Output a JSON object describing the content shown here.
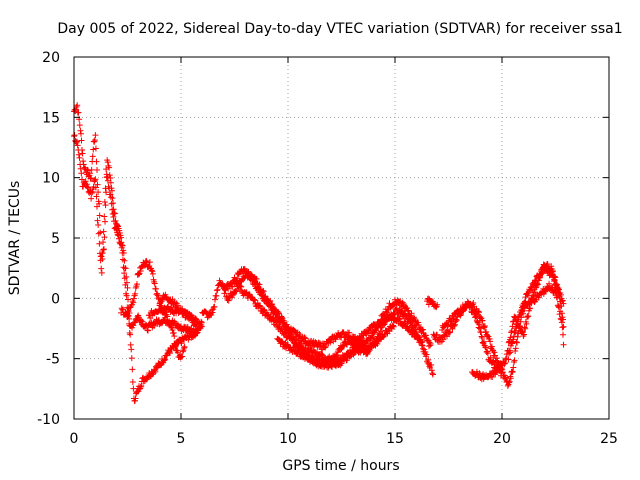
{
  "chart_data": {
    "type": "scatter",
    "title": "Day 005 of 2022, Sidereal Day-to-day VTEC variation (SDTVAR) for receiver ssa1",
    "xlabel": "GPS time / hours",
    "ylabel": "SDTVAR / TECUs",
    "xlim": [
      0,
      25
    ],
    "ylim": [
      -10,
      20
    ],
    "xticks": [
      0,
      5,
      10,
      15,
      20,
      25
    ],
    "yticks": [
      -10,
      -5,
      0,
      5,
      10,
      15,
      20
    ],
    "grid": true,
    "marker": "+",
    "series": [
      {
        "name": "SDTVAR",
        "color": "#ff0000",
        "traces": [
          [
            [
              0.0,
              15.5
            ],
            [
              0.15,
              16.0
            ],
            [
              0.3,
              14.0
            ],
            [
              0.45,
              11.0
            ],
            [
              0.6,
              10.5
            ],
            [
              0.8,
              10.0
            ],
            [
              0.9,
              12.5
            ],
            [
              1.0,
              13.5
            ],
            [
              1.1,
              9.5
            ],
            [
              1.2,
              7.0
            ],
            [
              1.25,
              3.5
            ],
            [
              1.4,
              4.0
            ],
            [
              1.55,
              11.5
            ],
            [
              1.7,
              10.0
            ],
            [
              1.85,
              7.5
            ],
            [
              2.0,
              6.0
            ],
            [
              2.2,
              5.0
            ],
            [
              2.4,
              1.0
            ],
            [
              2.55,
              -1.5
            ],
            [
              2.7,
              -5.0
            ],
            [
              2.8,
              -8.5
            ],
            [
              2.9,
              -8.0
            ],
            [
              3.2,
              -6.8
            ],
            [
              3.6,
              -6.2
            ],
            [
              4.0,
              -5.5
            ],
            [
              4.4,
              -4.5
            ],
            [
              4.8,
              -3.8
            ],
            [
              5.2,
              -3.3
            ],
            [
              5.6,
              -3.0
            ],
            [
              6.0,
              -2.0
            ]
          ],
          [
            [
              0.0,
              13.5
            ],
            [
              0.2,
              12.5
            ],
            [
              0.4,
              9.5
            ],
            [
              0.6,
              9.5
            ],
            [
              0.8,
              8.5
            ],
            [
              1.0,
              10.0
            ],
            [
              1.1,
              6.5
            ],
            [
              1.3,
              2.0
            ],
            [
              1.5,
              10.5
            ],
            [
              1.7,
              8.5
            ],
            [
              1.9,
              6.0
            ],
            [
              2.1,
              5.0
            ],
            [
              2.3,
              4.0
            ],
            [
              2.5,
              1.0
            ],
            [
              2.6,
              -2.5
            ],
            [
              2.8,
              -2.0
            ],
            [
              3.0,
              -1.5
            ],
            [
              3.4,
              -2.5
            ],
            [
              3.8,
              -2.0
            ],
            [
              4.2,
              -1.8
            ],
            [
              4.6,
              -2.0
            ],
            [
              5.0,
              -2.5
            ],
            [
              5.4,
              -2.5
            ],
            [
              5.8,
              -3.0
            ]
          ],
          [
            [
              2.2,
              -1.0
            ],
            [
              2.5,
              -1.5
            ],
            [
              2.8,
              0.0
            ],
            [
              3.0,
              2.0
            ],
            [
              3.3,
              3.0
            ],
            [
              3.6,
              2.7
            ],
            [
              3.8,
              1.0
            ],
            [
              4.0,
              -0.5
            ],
            [
              4.3,
              -1.5
            ],
            [
              4.6,
              -2.5
            ],
            [
              4.8,
              -4.5
            ],
            [
              5.0,
              -5.0
            ],
            [
              5.2,
              -4.0
            ]
          ],
          [
            [
              3.5,
              -1.5
            ],
            [
              3.8,
              -1.0
            ],
            [
              4.2,
              -0.8
            ],
            [
              4.6,
              -1.0
            ],
            [
              5.0,
              -1.2
            ],
            [
              5.4,
              -1.5
            ],
            [
              5.8,
              -2.0
            ],
            [
              6.0,
              -2.5
            ]
          ],
          [
            [
              4.0,
              -0.2
            ],
            [
              4.3,
              0.2
            ],
            [
              4.6,
              -0.3
            ],
            [
              5.0,
              -1.0
            ],
            [
              5.4,
              -1.5
            ],
            [
              5.8,
              -2.5
            ]
          ],
          [
            [
              6.0,
              -1.0
            ],
            [
              6.3,
              -1.5
            ],
            [
              6.5,
              -1.0
            ],
            [
              6.8,
              1.5
            ],
            [
              7.2,
              0.0
            ],
            [
              7.5,
              0.5
            ],
            [
              7.8,
              1.5
            ],
            [
              8.0,
              2.0
            ],
            [
              8.2,
              1.8
            ],
            [
              8.5,
              1.5
            ],
            [
              8.8,
              0.5
            ],
            [
              9.2,
              -0.5
            ],
            [
              9.6,
              -1.5
            ],
            [
              10.0,
              -2.5
            ],
            [
              10.4,
              -3.0
            ],
            [
              10.8,
              -3.5
            ],
            [
              11.2,
              -3.8
            ],
            [
              11.6,
              -4.0
            ],
            [
              12.0,
              -3.5
            ],
            [
              12.4,
              -3.0
            ],
            [
              12.8,
              -3.0
            ],
            [
              13.2,
              -3.5
            ],
            [
              13.6,
              -3.8
            ],
            [
              14.0,
              -3.0
            ],
            [
              14.4,
              -1.5
            ],
            [
              14.8,
              -0.5
            ],
            [
              15.0,
              -0.3
            ],
            [
              15.3,
              -0.5
            ],
            [
              15.6,
              -1.0
            ],
            [
              16.0,
              -2.0
            ],
            [
              16.3,
              -2.8
            ],
            [
              16.5,
              -3.5
            ],
            [
              16.7,
              -4.0
            ]
          ],
          [
            [
              7.0,
              0.8
            ],
            [
              7.4,
              1.2
            ],
            [
              7.8,
              2.2
            ],
            [
              8.1,
              2.2
            ],
            [
              8.5,
              1.0
            ],
            [
              8.9,
              0.0
            ],
            [
              9.3,
              -1.0
            ],
            [
              9.7,
              -2.0
            ],
            [
              10.1,
              -3.0
            ],
            [
              10.5,
              -4.0
            ],
            [
              10.9,
              -4.8
            ],
            [
              11.3,
              -5.2
            ],
            [
              11.7,
              -5.4
            ],
            [
              12.1,
              -5.0
            ],
            [
              12.5,
              -4.0
            ],
            [
              12.9,
              -3.5
            ],
            [
              13.3,
              -4.0
            ],
            [
              13.7,
              -4.5
            ],
            [
              14.1,
              -3.5
            ],
            [
              14.5,
              -2.0
            ],
            [
              14.9,
              -1.2
            ],
            [
              15.2,
              -1.0
            ],
            [
              15.5,
              -1.5
            ],
            [
              15.9,
              -2.5
            ],
            [
              16.2,
              -3.5
            ],
            [
              16.5,
              -5.0
            ],
            [
              16.8,
              -6.2
            ]
          ],
          [
            [
              7.5,
              1.5
            ],
            [
              7.9,
              0.5
            ],
            [
              8.3,
              0.0
            ],
            [
              8.7,
              -0.8
            ],
            [
              9.1,
              -1.5
            ],
            [
              9.5,
              -2.2
            ],
            [
              9.9,
              -3.0
            ],
            [
              10.3,
              -3.5
            ],
            [
              10.7,
              -4.2
            ],
            [
              11.1,
              -4.5
            ],
            [
              11.5,
              -4.8
            ],
            [
              11.9,
              -5.0
            ],
            [
              12.3,
              -5.5
            ],
            [
              12.7,
              -5.0
            ],
            [
              13.1,
              -4.0
            ],
            [
              13.5,
              -3.0
            ],
            [
              13.9,
              -2.5
            ],
            [
              14.3,
              -2.0
            ],
            [
              14.7,
              -1.5
            ],
            [
              15.1,
              -1.8
            ],
            [
              15.5,
              -2.2
            ],
            [
              15.9,
              -3.0
            ],
            [
              16.3,
              -3.8
            ]
          ],
          [
            [
              9.5,
              -3.5
            ],
            [
              10.0,
              -4.0
            ],
            [
              10.5,
              -4.5
            ],
            [
              11.0,
              -5.0
            ],
            [
              11.5,
              -5.5
            ],
            [
              12.0,
              -5.5
            ],
            [
              12.5,
              -5.0
            ],
            [
              13.0,
              -4.5
            ],
            [
              13.5,
              -4.2
            ],
            [
              14.0,
              -4.0
            ],
            [
              14.5,
              -3.0
            ],
            [
              15.0,
              -2.0
            ]
          ],
          [
            [
              16.5,
              -0.2
            ],
            [
              16.8,
              -0.5
            ],
            [
              17.0,
              -0.5
            ]
          ],
          [
            [
              16.8,
              -3.0
            ],
            [
              17.1,
              -3.5
            ],
            [
              17.4,
              -3.0
            ],
            [
              17.8,
              -2.0
            ],
            [
              18.2,
              -0.8
            ],
            [
              18.6,
              -0.5
            ],
            [
              18.9,
              -1.2
            ],
            [
              19.2,
              -2.5
            ],
            [
              19.5,
              -4.0
            ],
            [
              19.7,
              -5.0
            ],
            [
              19.9,
              -5.5
            ],
            [
              20.1,
              -6.5
            ],
            [
              20.3,
              -7.2
            ],
            [
              20.5,
              -6.0
            ],
            [
              20.7,
              -3.5
            ],
            [
              20.9,
              -1.5
            ],
            [
              21.1,
              -0.5
            ],
            [
              21.3,
              -0.3
            ],
            [
              21.6,
              0.0
            ],
            [
              21.9,
              0.5
            ],
            [
              22.2,
              1.0
            ],
            [
              22.5,
              0.5
            ],
            [
              22.8,
              -2.0
            ],
            [
              22.9,
              -4.5
            ]
          ],
          [
            [
              17.2,
              -2.5
            ],
            [
              17.6,
              -1.8
            ],
            [
              18.0,
              -1.0
            ],
            [
              18.4,
              -0.5
            ],
            [
              18.8,
              -1.5
            ],
            [
              19.1,
              -3.5
            ],
            [
              19.4,
              -5.0
            ],
            [
              19.6,
              -5.5
            ],
            [
              19.9,
              -6.0
            ],
            [
              20.0,
              -6.5
            ]
          ],
          [
            [
              18.6,
              -6.0
            ],
            [
              19.0,
              -6.5
            ],
            [
              19.4,
              -6.5
            ],
            [
              19.8,
              -6.0
            ],
            [
              20.2,
              -5.0
            ],
            [
              20.4,
              -3.0
            ],
            [
              20.6,
              -1.5
            ],
            [
              20.8,
              -2.5
            ],
            [
              21.0,
              -3.0
            ],
            [
              21.2,
              -1.5
            ],
            [
              21.4,
              0.0
            ],
            [
              21.7,
              1.5
            ],
            [
              22.0,
              2.8
            ],
            [
              22.3,
              2.5
            ],
            [
              22.6,
              1.0
            ],
            [
              22.8,
              -1.0
            ],
            [
              22.9,
              -3.0
            ]
          ],
          [
            [
              20.3,
              -5.0
            ],
            [
              20.5,
              -3.5
            ],
            [
              20.7,
              -2.0
            ],
            [
              20.9,
              -1.0
            ],
            [
              21.1,
              0.0
            ],
            [
              21.4,
              1.0
            ],
            [
              21.7,
              2.0
            ],
            [
              22.0,
              2.5
            ],
            [
              22.3,
              2.0
            ],
            [
              22.6,
              0.8
            ],
            [
              22.9,
              -0.5
            ]
          ]
        ]
      }
    ]
  }
}
